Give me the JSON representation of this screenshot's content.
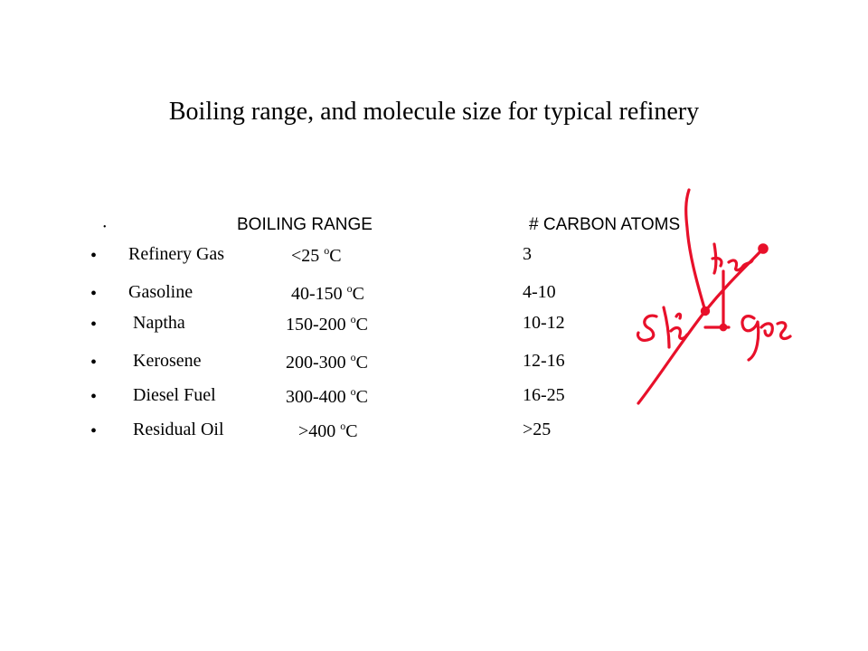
{
  "title": "Boiling range, and molecule size for typical refinery",
  "header": {
    "boiling_range": "BOILING RANGE",
    "carbon_atoms": "# CARBON ATOMS"
  },
  "degree_mark": "o",
  "rows": [
    {
      "fraction": "Refinery Gas",
      "range": "<25",
      "unit": "C",
      "carbons": "3"
    },
    {
      "fraction": "Gasoline",
      "range": "40-150",
      "unit": "C",
      "carbons": "4-10"
    },
    {
      "fraction": "Naptha",
      "range": "150-200",
      "unit": "C",
      "carbons": "10-12"
    },
    {
      "fraction": "Kerosene",
      "range": "200-300",
      "unit": "C",
      "carbons": "12-16"
    },
    {
      "fraction": "Diesel Fuel",
      "range": "300-400",
      "unit": "C",
      "carbons": "16-25"
    },
    {
      "fraction": "Residual Oil",
      "range": ">400",
      "unit": "C",
      "carbons": ">25"
    }
  ],
  "annotations": {
    "color": "#e8102a",
    "labels": [
      "liq",
      "gas",
      "sol"
    ]
  }
}
